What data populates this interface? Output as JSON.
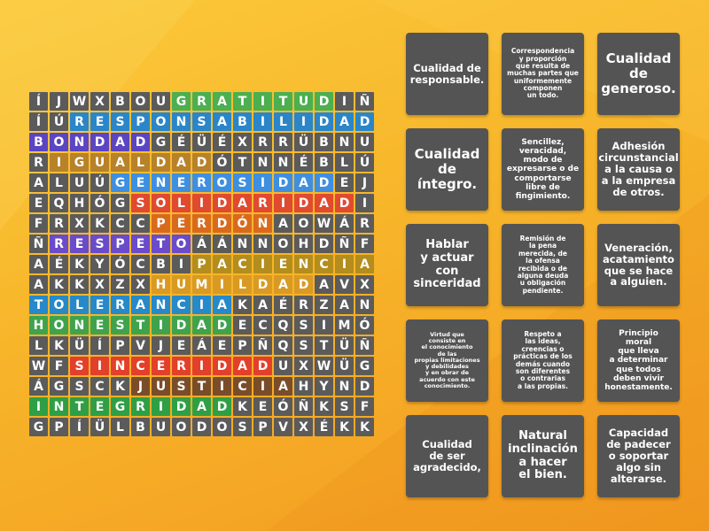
{
  "grid": [
    "ÍJWXBOUGRATITUDIÑ",
    "ÍÚRESPONSABILIDAD",
    "BONDADGÉÜÉXRRÜBNU",
    "RIGUALDADÓTNNÉBLÚ",
    "ALUÚGENEROSIDADEJ",
    "EQHÓGSOLIDARIDADI",
    "FRXKCCPERDÓNAOWÁR",
    "ÑRESPETOÁÁNNOHDÑF",
    "AÉKYÓCBIPACIENCIA",
    "AKKXZXHUMILDADAVX",
    "TOLERANCIAKAÉRZAN",
    "HONESTIDADECQSIMÓ",
    "LKÜÍPVJEÁEPÑQSTÜÑ",
    "WFSINCERIDADUXWÜG",
    "ÁGSCKJUSTICIAHYND",
    "INTEGRIDADKEÓÑKSF",
    "GPÍÜLBUODOSPVXÉKK"
  ],
  "found_words": [
    {
      "word": "GRATITUD",
      "row": 0,
      "start": 7,
      "dir": "h",
      "color": "#4caf50"
    },
    {
      "word": "RESPONSABILIDAD",
      "row": 1,
      "start": 2,
      "dir": "h",
      "color": "#2a86c8"
    },
    {
      "word": "BONDAD",
      "row": 2,
      "start": 0,
      "dir": "h",
      "color": "#5c45c2"
    },
    {
      "word": "IGUALDAD",
      "row": 3,
      "start": 1,
      "dir": "h",
      "color": "#b7822a"
    },
    {
      "word": "GENEROSIDAD",
      "row": 4,
      "start": 4,
      "dir": "h",
      "color": "#3e8fe0"
    },
    {
      "word": "SOLIDARIDAD",
      "row": 5,
      "start": 5,
      "dir": "h",
      "color": "#e04a2f"
    },
    {
      "word": "PERDÓN",
      "row": 6,
      "start": 6,
      "dir": "h",
      "color": "#d96a1c"
    },
    {
      "word": "RESPETO",
      "row": 7,
      "start": 1,
      "dir": "h",
      "color": "#6a4bc9"
    },
    {
      "word": "PACIENCIA",
      "row": 8,
      "start": 8,
      "dir": "h",
      "color": "#b38d1d"
    },
    {
      "word": "HUMILDAD",
      "row": 9,
      "start": 6,
      "dir": "h",
      "color": "#d99a24"
    },
    {
      "word": "TOLERANCIA",
      "row": 10,
      "start": 0,
      "dir": "h",
      "color": "#2689c9"
    },
    {
      "word": "HONESTIDAD",
      "row": 11,
      "start": 0,
      "dir": "h",
      "color": "#3fa34d"
    },
    {
      "word": "SINCERIDAD",
      "row": 13,
      "start": 2,
      "dir": "h",
      "color": "#e2402b"
    },
    {
      "word": "JUSTICIA",
      "row": 14,
      "start": 5,
      "dir": "h",
      "color": "#7a4d2a"
    },
    {
      "word": "INTEGRIDAD",
      "row": 15,
      "start": 0,
      "dir": "h",
      "color": "#2f9f45"
    }
  ],
  "cards": [
    {
      "lines": [
        "Cualidad de",
        "responsable."
      ],
      "size": "s-m"
    },
    {
      "lines": [
        "Correspondencia",
        "y proporción",
        "que resulta de",
        "muchas partes que",
        "uniformemente",
        "componen",
        "un todo."
      ],
      "size": "s-xs"
    },
    {
      "lines": [
        "Cualidad",
        "de",
        "generoso."
      ],
      "size": "s-xl"
    },
    {
      "lines": [
        "Cualidad",
        "de",
        "íntegro."
      ],
      "size": "s-xl"
    },
    {
      "lines": [
        "Sencillez,",
        "veracidad,",
        "modo de",
        "expresarse o de",
        "comportarse",
        "libre de",
        "fingimiento."
      ],
      "size": "s-s"
    },
    {
      "lines": [
        "Adhesión",
        "circunstancial",
        "a la causa o",
        "a la empresa",
        "de otros."
      ],
      "size": "s-m"
    },
    {
      "lines": [
        "Hablar",
        "y actuar",
        "con",
        "sinceridad"
      ],
      "size": "s-l"
    },
    {
      "lines": [
        "Remisión de",
        "la pena",
        "merecida, de",
        "la ofensa",
        "recibida o de",
        "alguna deuda",
        "u obligación",
        "pendiente."
      ],
      "size": "s-xs"
    },
    {
      "lines": [
        "Veneración,",
        "acatamiento",
        "que se hace",
        "a alguien."
      ],
      "size": "s-m"
    },
    {
      "lines": [
        "Virtud que",
        "consiste en",
        "el conocimiento",
        "de las",
        "propias limitaciones",
        "y debilidades",
        "y en obrar de",
        "acuerdo con este",
        "conocimiento."
      ],
      "size": "s-xxs"
    },
    {
      "lines": [
        "Respeto a",
        "las ideas,",
        "creencias o",
        "prácticas de los",
        "demás cuando",
        "son diferentes",
        "o contrarias",
        "a las propias."
      ],
      "size": "s-xs"
    },
    {
      "lines": [
        "Principio",
        "moral",
        "que lleva",
        "a determinar",
        "que todos",
        "deben vivir",
        "honestamente."
      ],
      "size": "s-s"
    },
    {
      "lines": [
        "Cualidad",
        "de ser",
        "agradecido,"
      ],
      "size": "s-m"
    },
    {
      "lines": [
        "Natural",
        "inclinación",
        "a hacer",
        "el bien."
      ],
      "size": "s-l"
    },
    {
      "lines": [
        "Capacidad",
        "de padecer",
        "o soportar",
        "algo sin",
        "alterarse."
      ],
      "size": "s-m"
    }
  ],
  "colors": {
    "default_cell": "#5b5b5b",
    "card": "#545454"
  }
}
